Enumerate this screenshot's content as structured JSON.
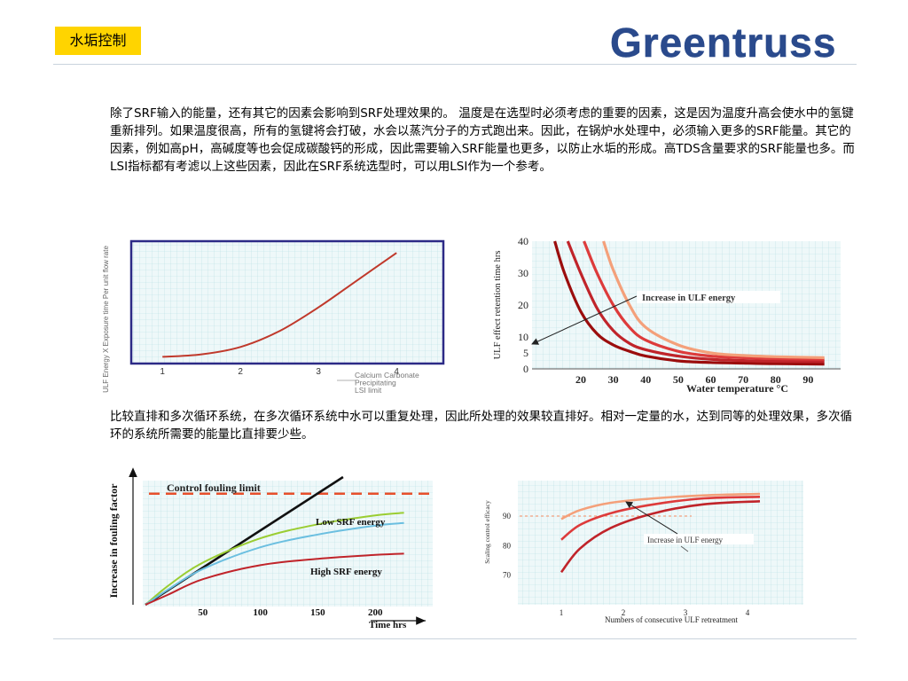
{
  "header": {
    "tag": "水垢控制",
    "logo_text": "Greentruss"
  },
  "paragraphs": {
    "p1": "除了SRF输入的能量，还有其它的因素会影响到SRF处理效果的。 温度是在选型时必须考虑的重要的因素，这是因为温度升高会使水中的氢键重新排列。如果温度很高，所有的氢键将会打破，水会以蒸汽分子的方式跑出来。因此，在锅炉水处理中，必须输入更多的SRF能量。其它的因素，例如高pH，高碱度等也会促成碳酸钙的形成，因此需要输入SRF能量也更多，以防止水垢的形成。高TDS含量要求的SRF能量也多。而LSI指标都有考滤以上这些因素，因此在SRF系统选型时，可以用LSI作为一个参考。",
    "p2": "比较直排和多次循环系统，在多次循环系统中水可以重复处理，因此所处理的效果较直排好。相对一定量的水，达到同等的处理效果，多次循环的系统所需要的能量比直排要少些。"
  },
  "colors": {
    "accent": "#ffd400",
    "logo": "#2a4a8c",
    "curve": "#c0392b"
  },
  "chart_data": [
    {
      "type": "line",
      "ylabel": "ULF Energy X Exposure time Per unit flow rate",
      "xlabel": "Calcium Carbonate Precipitating LSI limit",
      "x_ticks": [
        "1",
        "2",
        "3",
        "4"
      ],
      "xlim": [
        0.6,
        4.6
      ],
      "series": [
        {
          "x": [
            1.0,
            1.5,
            2.0,
            2.5,
            3.0,
            3.5,
            4.0
          ],
          "y": [
            1.0,
            1.5,
            3.0,
            6.2,
            11.0,
            16.5,
            22.0
          ]
        }
      ]
    },
    {
      "type": "line",
      "ylabel": "ULF effect retention time hrs",
      "xlabel": "Water temperature °C",
      "annotation": "Increase in ULF energy",
      "y_ticks": [
        "0",
        "5",
        "10",
        "20",
        "30",
        "40"
      ],
      "x_ticks": [
        "20",
        "30",
        "40",
        "50",
        "60",
        "70",
        "80",
        "90"
      ],
      "ylim": [
        0,
        40
      ],
      "xlim": [
        5,
        100
      ],
      "series": [
        {
          "x": [
            12,
            15,
            20,
            25,
            30,
            35,
            40,
            50,
            60,
            70,
            80,
            95
          ],
          "y": [
            40,
            30,
            18,
            11,
            7.5,
            5.5,
            4,
            2.5,
            2,
            1.8,
            1.6,
            1.5
          ]
        },
        {
          "x": [
            16,
            20,
            25,
            30,
            35,
            40,
            50,
            60,
            70,
            80,
            95
          ],
          "y": [
            40,
            30,
            19,
            12,
            8,
            6,
            4,
            3,
            2.6,
            2.4,
            2.3
          ]
        },
        {
          "x": [
            21,
            25,
            30,
            35,
            40,
            50,
            60,
            70,
            80,
            95
          ],
          "y": [
            40,
            30,
            20,
            13,
            9,
            5.5,
            4,
            3.5,
            3.2,
            3
          ]
        },
        {
          "x": [
            27,
            30,
            35,
            40,
            50,
            60,
            70,
            80,
            95
          ],
          "y": [
            40,
            31,
            20,
            13,
            7.5,
            5,
            4.2,
            3.8,
            3.5
          ]
        }
      ]
    },
    {
      "type": "line",
      "ylabel": "Increase in fouling factor",
      "xlabel": "Time hrs",
      "annotations": [
        "Control fouling limit",
        "Low SRF energy",
        "High SRF energy"
      ],
      "x_ticks": [
        "50",
        "100",
        "150",
        "200"
      ],
      "xlim": [
        0,
        250
      ],
      "ylim": [
        0,
        100
      ],
      "series": [
        {
          "x": [
            0,
            172
          ],
          "y": [
            0,
            100
          ]
        },
        {
          "x": [
            0,
            20,
            50,
            100,
            150,
            200,
            225
          ],
          "y": [
            0,
            15,
            33,
            52,
            63,
            70,
            72
          ]
        },
        {
          "x": [
            0,
            20,
            50,
            100,
            150,
            200,
            225
          ],
          "y": [
            0,
            12,
            28,
            45,
            55,
            62,
            64
          ]
        },
        {
          "x": [
            0,
            20,
            50,
            100,
            150,
            200,
            225
          ],
          "y": [
            0,
            8,
            20,
            31,
            36,
            39,
            40
          ]
        }
      ],
      "limit_y": 87
    },
    {
      "type": "line",
      "ylabel": "Scaling control efficacy",
      "xlabel": "Numbers of consecutive ULF retreatment",
      "annotation": "Increase in ULF energy",
      "y_ticks": [
        "70",
        "80",
        "90"
      ],
      "x_ticks": [
        "1",
        "2",
        "3",
        "4"
      ],
      "ylim": [
        60,
        102
      ],
      "xlim": [
        0.3,
        4.9
      ],
      "series": [
        {
          "x": [
            1.0,
            1.3,
            1.8,
            2.5,
            3.3,
            4.2
          ],
          "y": [
            71,
            79,
            86,
            91,
            94,
            95
          ]
        },
        {
          "x": [
            1.0,
            1.3,
            1.8,
            2.5,
            3.3,
            4.2
          ],
          "y": [
            82,
            87,
            91,
            94,
            96,
            96.5
          ]
        },
        {
          "x": [
            1.0,
            1.3,
            1.8,
            2.5,
            3.3,
            4.2
          ],
          "y": [
            89,
            92,
            94.5,
            96,
            97,
            97.5
          ]
        }
      ],
      "limit_y": 90
    }
  ]
}
